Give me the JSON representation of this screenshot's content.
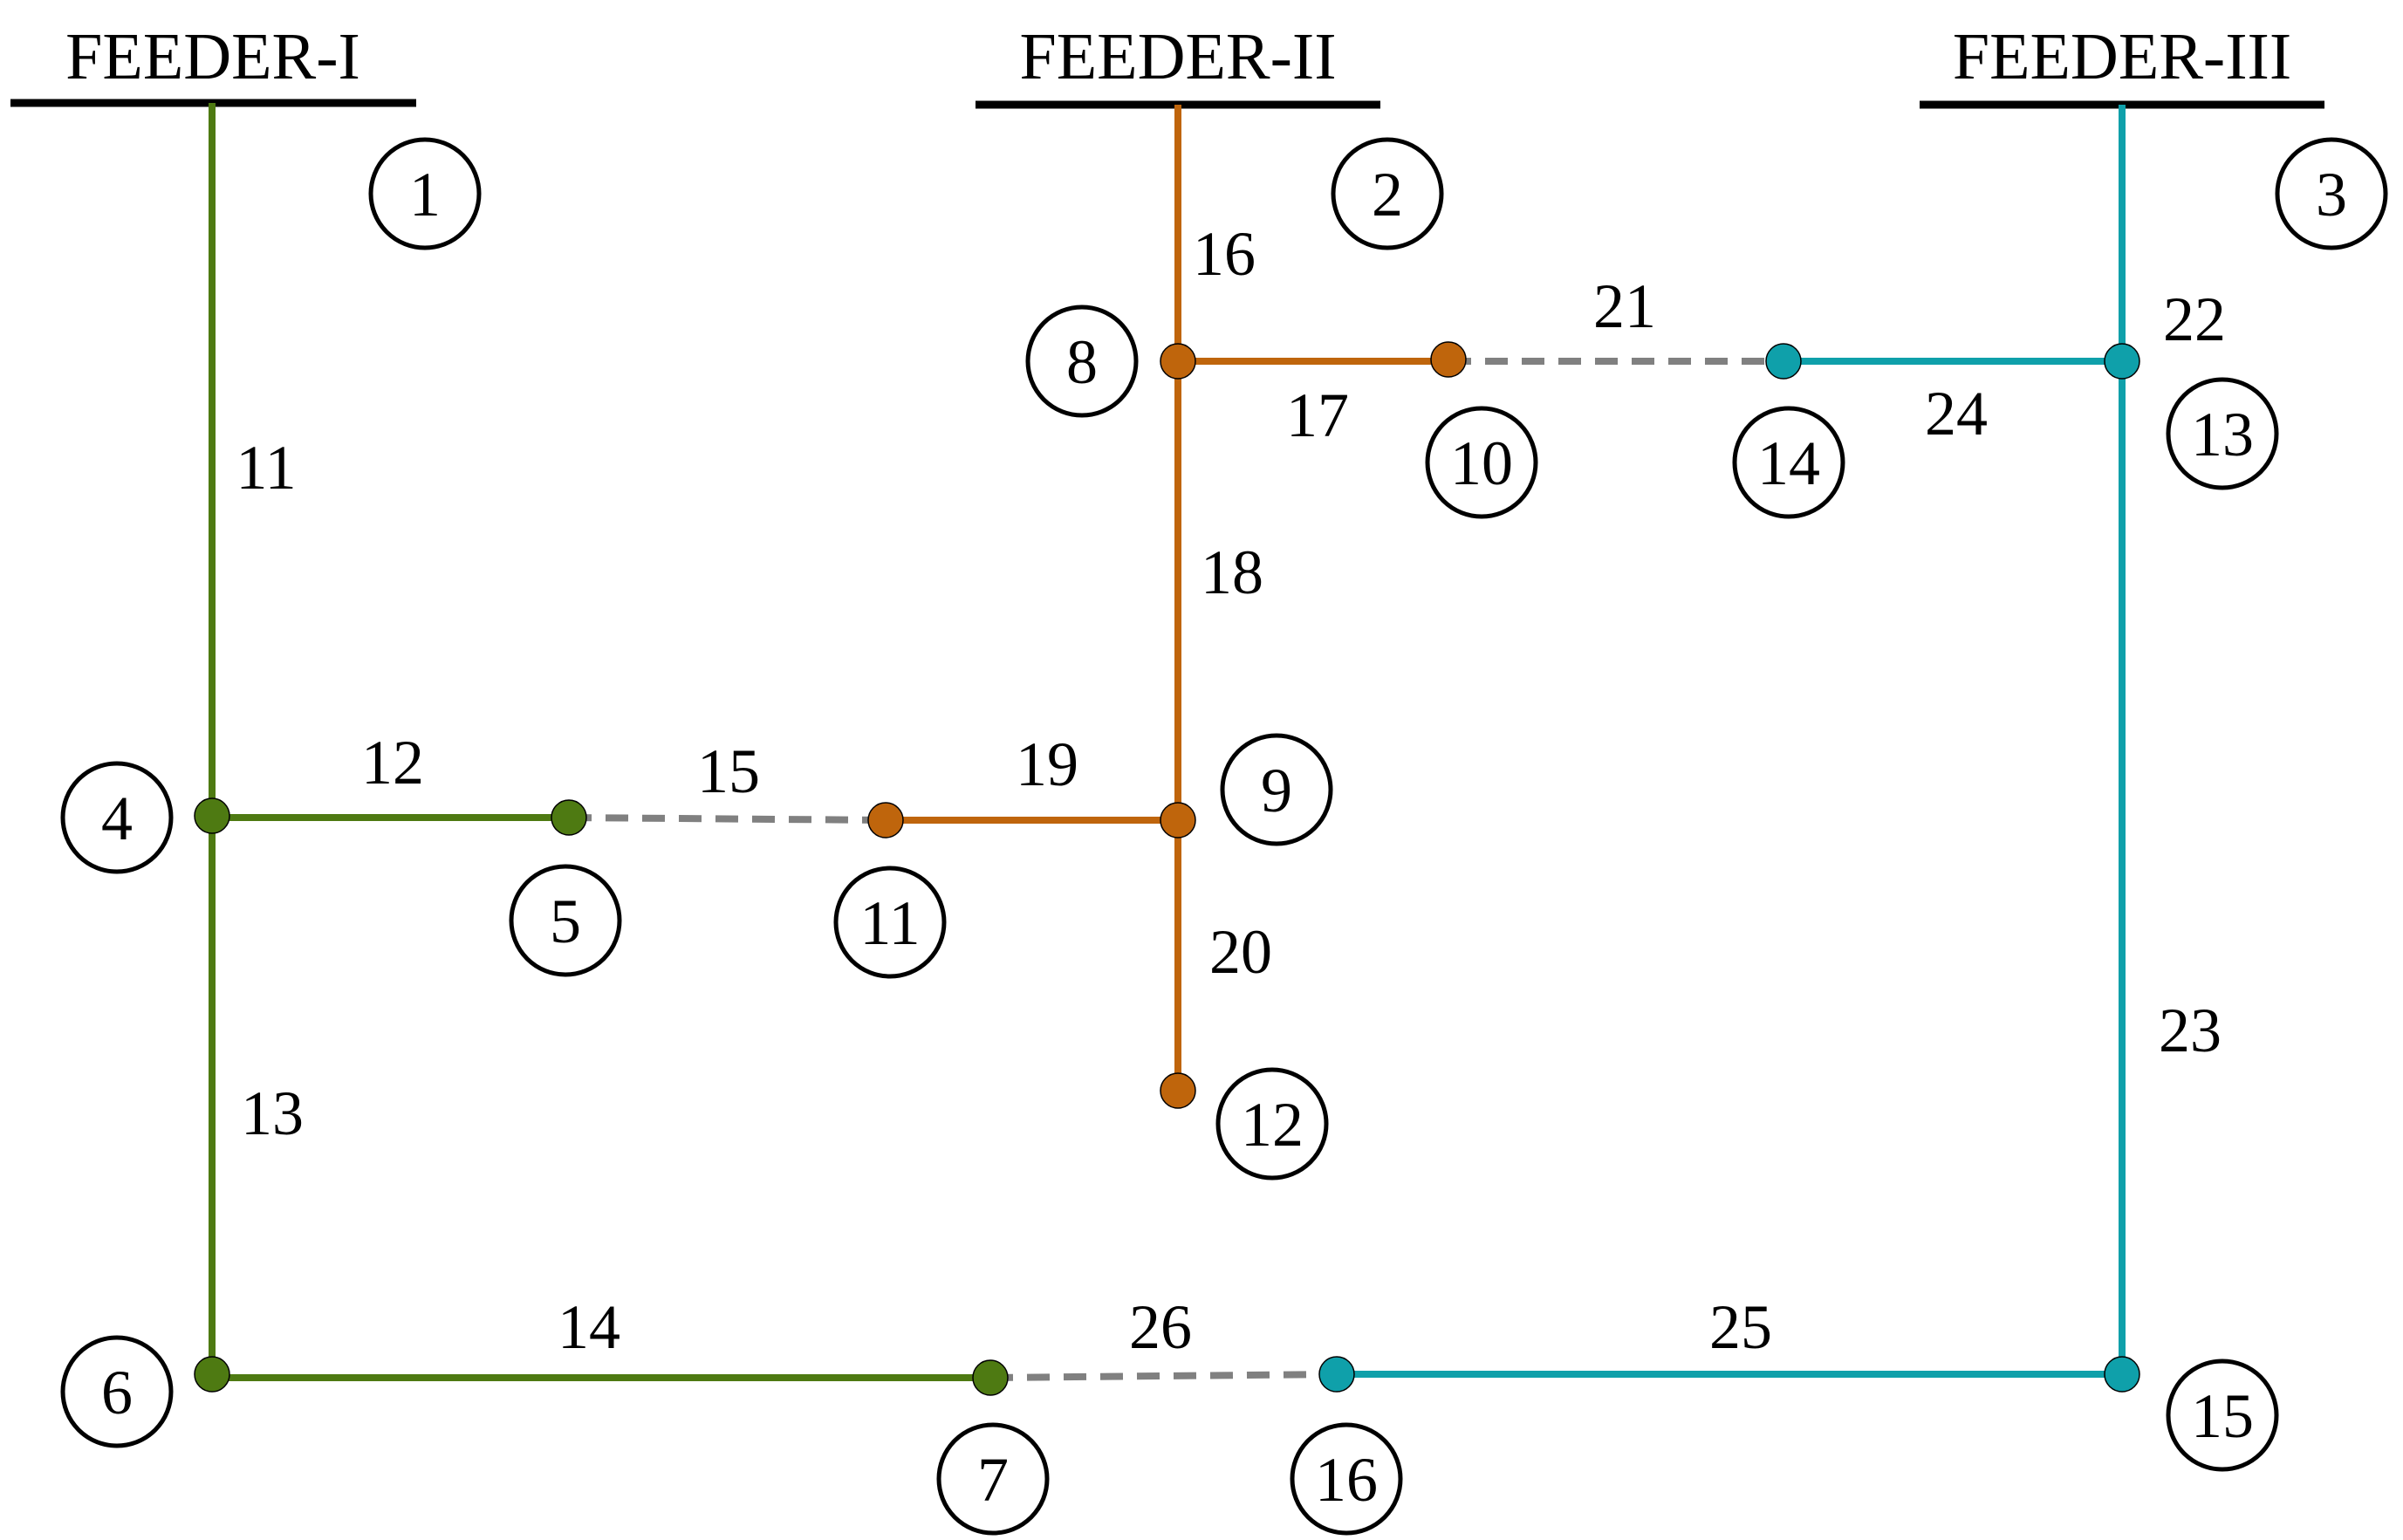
{
  "colors": {
    "feeder1": "#4e7a12",
    "feeder2": "#bf650c",
    "feeder3": "#0fa0aa",
    "tie": "#808080",
    "bus": "#000000"
  },
  "feeders": [
    {
      "id": "f1",
      "label": "FEEDER-I",
      "node": "1"
    },
    {
      "id": "f2",
      "label": "FEEDER-II",
      "node": "2"
    },
    {
      "id": "f3",
      "label": "FEEDER-III",
      "node": "3"
    }
  ],
  "nodes": [
    "1",
    "2",
    "3",
    "4",
    "5",
    "6",
    "7",
    "8",
    "9",
    "10",
    "11",
    "12",
    "13",
    "14",
    "15",
    "16"
  ],
  "branches": [
    {
      "id": "11",
      "from": "1",
      "to": "4",
      "feeder": "feeder1",
      "tie": false
    },
    {
      "id": "12",
      "from": "4",
      "to": "5",
      "feeder": "feeder1",
      "tie": false
    },
    {
      "id": "13",
      "from": "4",
      "to": "6",
      "feeder": "feeder1",
      "tie": false
    },
    {
      "id": "14",
      "from": "6",
      "to": "7",
      "feeder": "feeder1",
      "tie": false
    },
    {
      "id": "15",
      "from": "5",
      "to": "11",
      "feeder": "tie",
      "tie": true
    },
    {
      "id": "16",
      "from": "2",
      "to": "8",
      "feeder": "feeder2",
      "tie": false
    },
    {
      "id": "17",
      "from": "8",
      "to": "10",
      "feeder": "feeder2",
      "tie": false
    },
    {
      "id": "18",
      "from": "8",
      "to": "9",
      "feeder": "feeder2",
      "tie": false
    },
    {
      "id": "19",
      "from": "9",
      "to": "11",
      "feeder": "feeder2",
      "tie": false
    },
    {
      "id": "20",
      "from": "9",
      "to": "12",
      "feeder": "feeder2",
      "tie": false
    },
    {
      "id": "21",
      "from": "10",
      "to": "14",
      "feeder": "tie",
      "tie": true
    },
    {
      "id": "22",
      "from": "3",
      "to": "13",
      "feeder": "feeder3",
      "tie": false
    },
    {
      "id": "23",
      "from": "13",
      "to": "15",
      "feeder": "feeder3",
      "tie": false
    },
    {
      "id": "24",
      "from": "13",
      "to": "14",
      "feeder": "feeder3",
      "tie": false
    },
    {
      "id": "25",
      "from": "15",
      "to": "16",
      "feeder": "feeder3",
      "tie": false
    },
    {
      "id": "26",
      "from": "7",
      "to": "16",
      "feeder": "tie",
      "tie": true
    }
  ]
}
